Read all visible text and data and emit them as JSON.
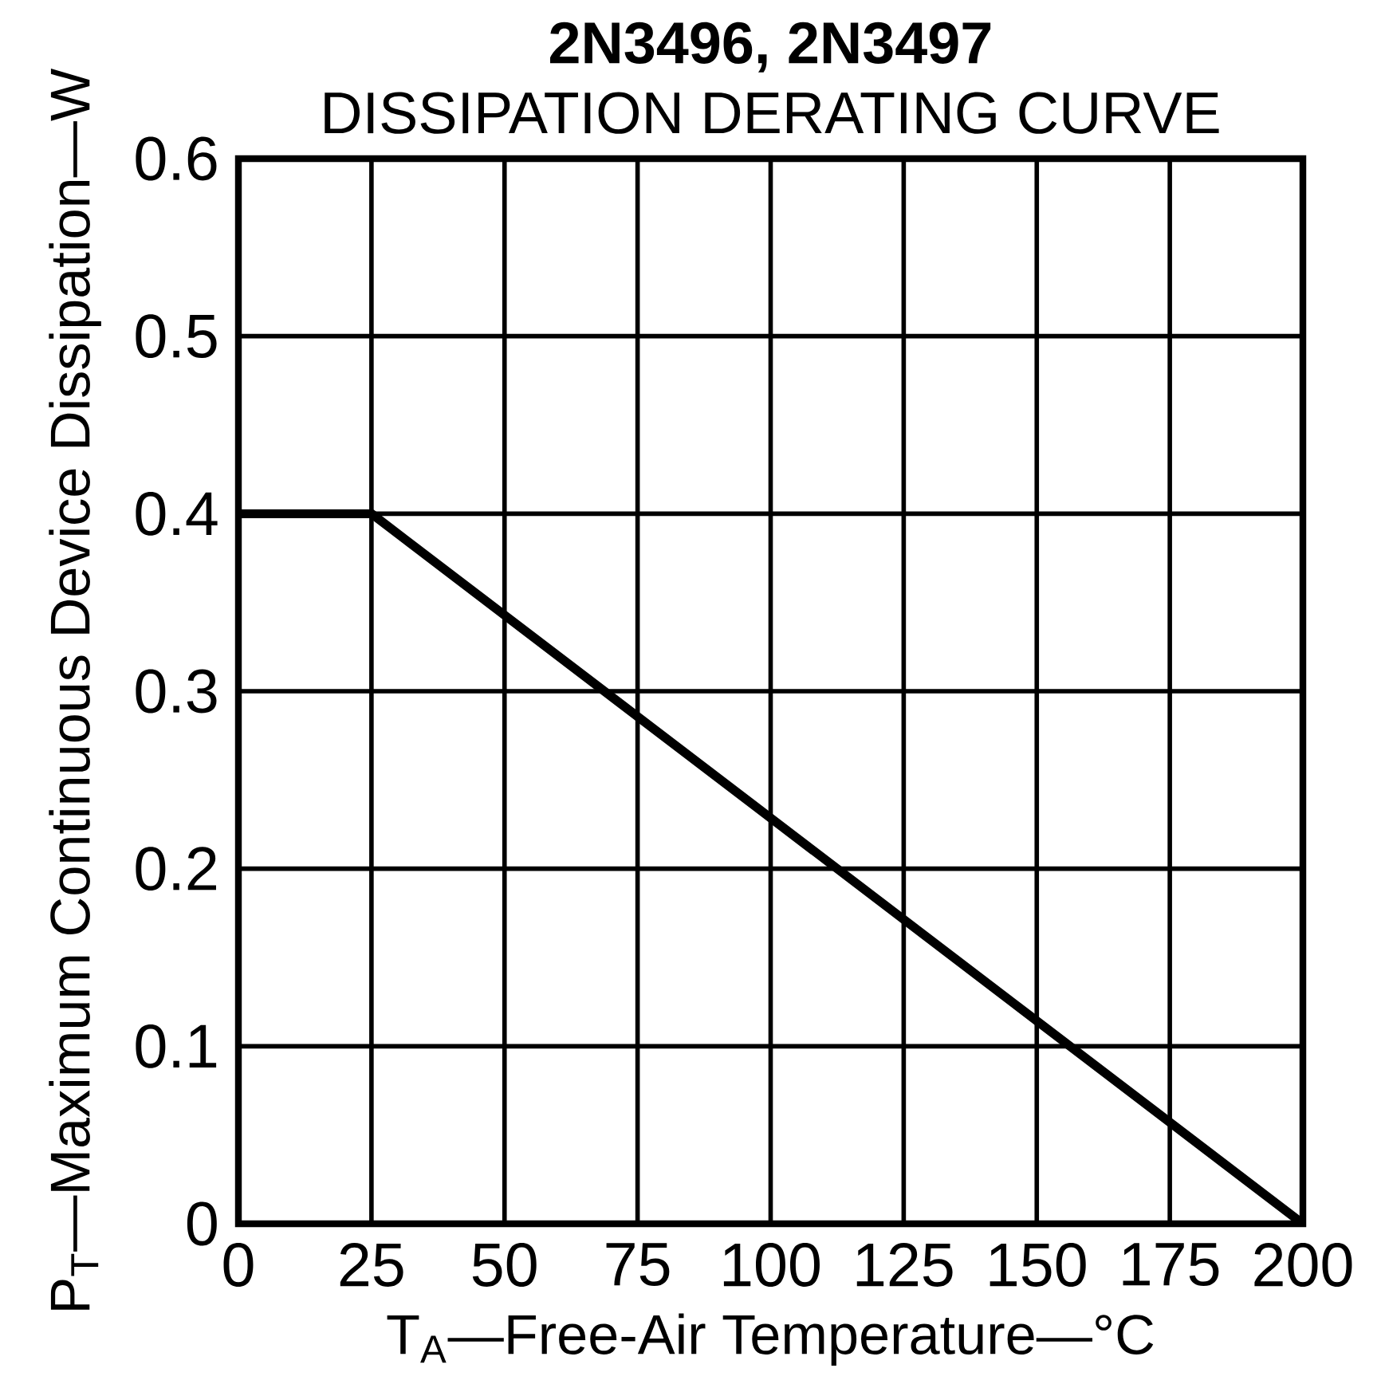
{
  "chart_data": {
    "type": "line",
    "title": "2N3496, 2N3497",
    "subtitle": "DISSIPATION DERATING CURVE",
    "xlabel": "T$_{A}$—Free-Air Temperature—°C",
    "ylabel": "P$_{T}$—Maximum Continuous Device Dissipation—W",
    "x": [
      0,
      25,
      200
    ],
    "series": [
      {
        "color": "#000000",
        "values": [
          0.4,
          0.4,
          0
        ]
      }
    ],
    "xlim": [
      0,
      200
    ],
    "xticks": [
      0,
      25,
      50,
      75,
      100,
      125,
      150,
      175,
      200
    ],
    "ylim": [
      0,
      0.6
    ],
    "yticks": [
      0,
      0.1,
      0.2,
      0.3,
      0.4,
      0.5,
      0.6
    ],
    "grid": true,
    "marker": "none",
    "line_style": "solid"
  }
}
